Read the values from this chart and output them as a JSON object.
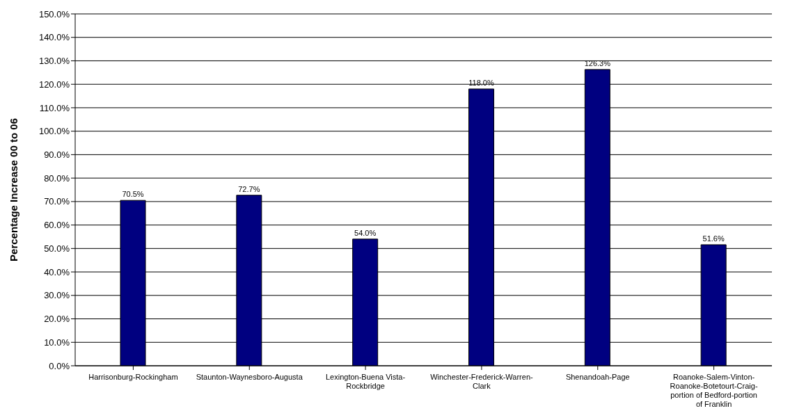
{
  "chart_data": {
    "type": "bar",
    "ylabel": "Percentage Increase 00 to 06",
    "categories": [
      "Harrisonburg-Rockingham",
      "Staunton-Waynesboro-Augusta",
      "Lexington-Buena Vista-Rockbridge",
      "Winchester-Frederick-Warren-Clark",
      "Shenandoah-Page",
      "Roanoke-Salem-Vinton-Roanoke-Botetourt-Craig-portion of Bedford-portion of Franklin"
    ],
    "values": [
      70.5,
      72.7,
      54.0,
      118.0,
      126.3,
      51.6
    ],
    "value_labels": [
      "70.5%",
      "72.7%",
      "54.0%",
      "118.0%",
      "126.3%",
      "51.6%"
    ],
    "color": "#000080",
    "ylim": [
      0,
      150
    ],
    "yticks": [
      {
        "value": 0,
        "label": "0.0%"
      },
      {
        "value": 10,
        "label": "10.0%"
      },
      {
        "value": 20,
        "label": "20.0%"
      },
      {
        "value": 30,
        "label": "30.0%"
      },
      {
        "value": 40,
        "label": "40.0%"
      },
      {
        "value": 50,
        "label": "50.0%"
      },
      {
        "value": 60,
        "label": "60.0%"
      },
      {
        "value": 70,
        "label": "70.0%"
      },
      {
        "value": 80,
        "label": "80.0%"
      },
      {
        "value": 90,
        "label": "90.0%"
      },
      {
        "value": 100,
        "label": "100.0%"
      },
      {
        "value": 110,
        "label": "110.0%"
      },
      {
        "value": 120,
        "label": "120.0%"
      },
      {
        "value": 130,
        "label": "130.0%"
      },
      {
        "value": 140,
        "label": "140.0%"
      },
      {
        "value": 150,
        "label": "150.0%"
      }
    ],
    "grid": "y"
  }
}
